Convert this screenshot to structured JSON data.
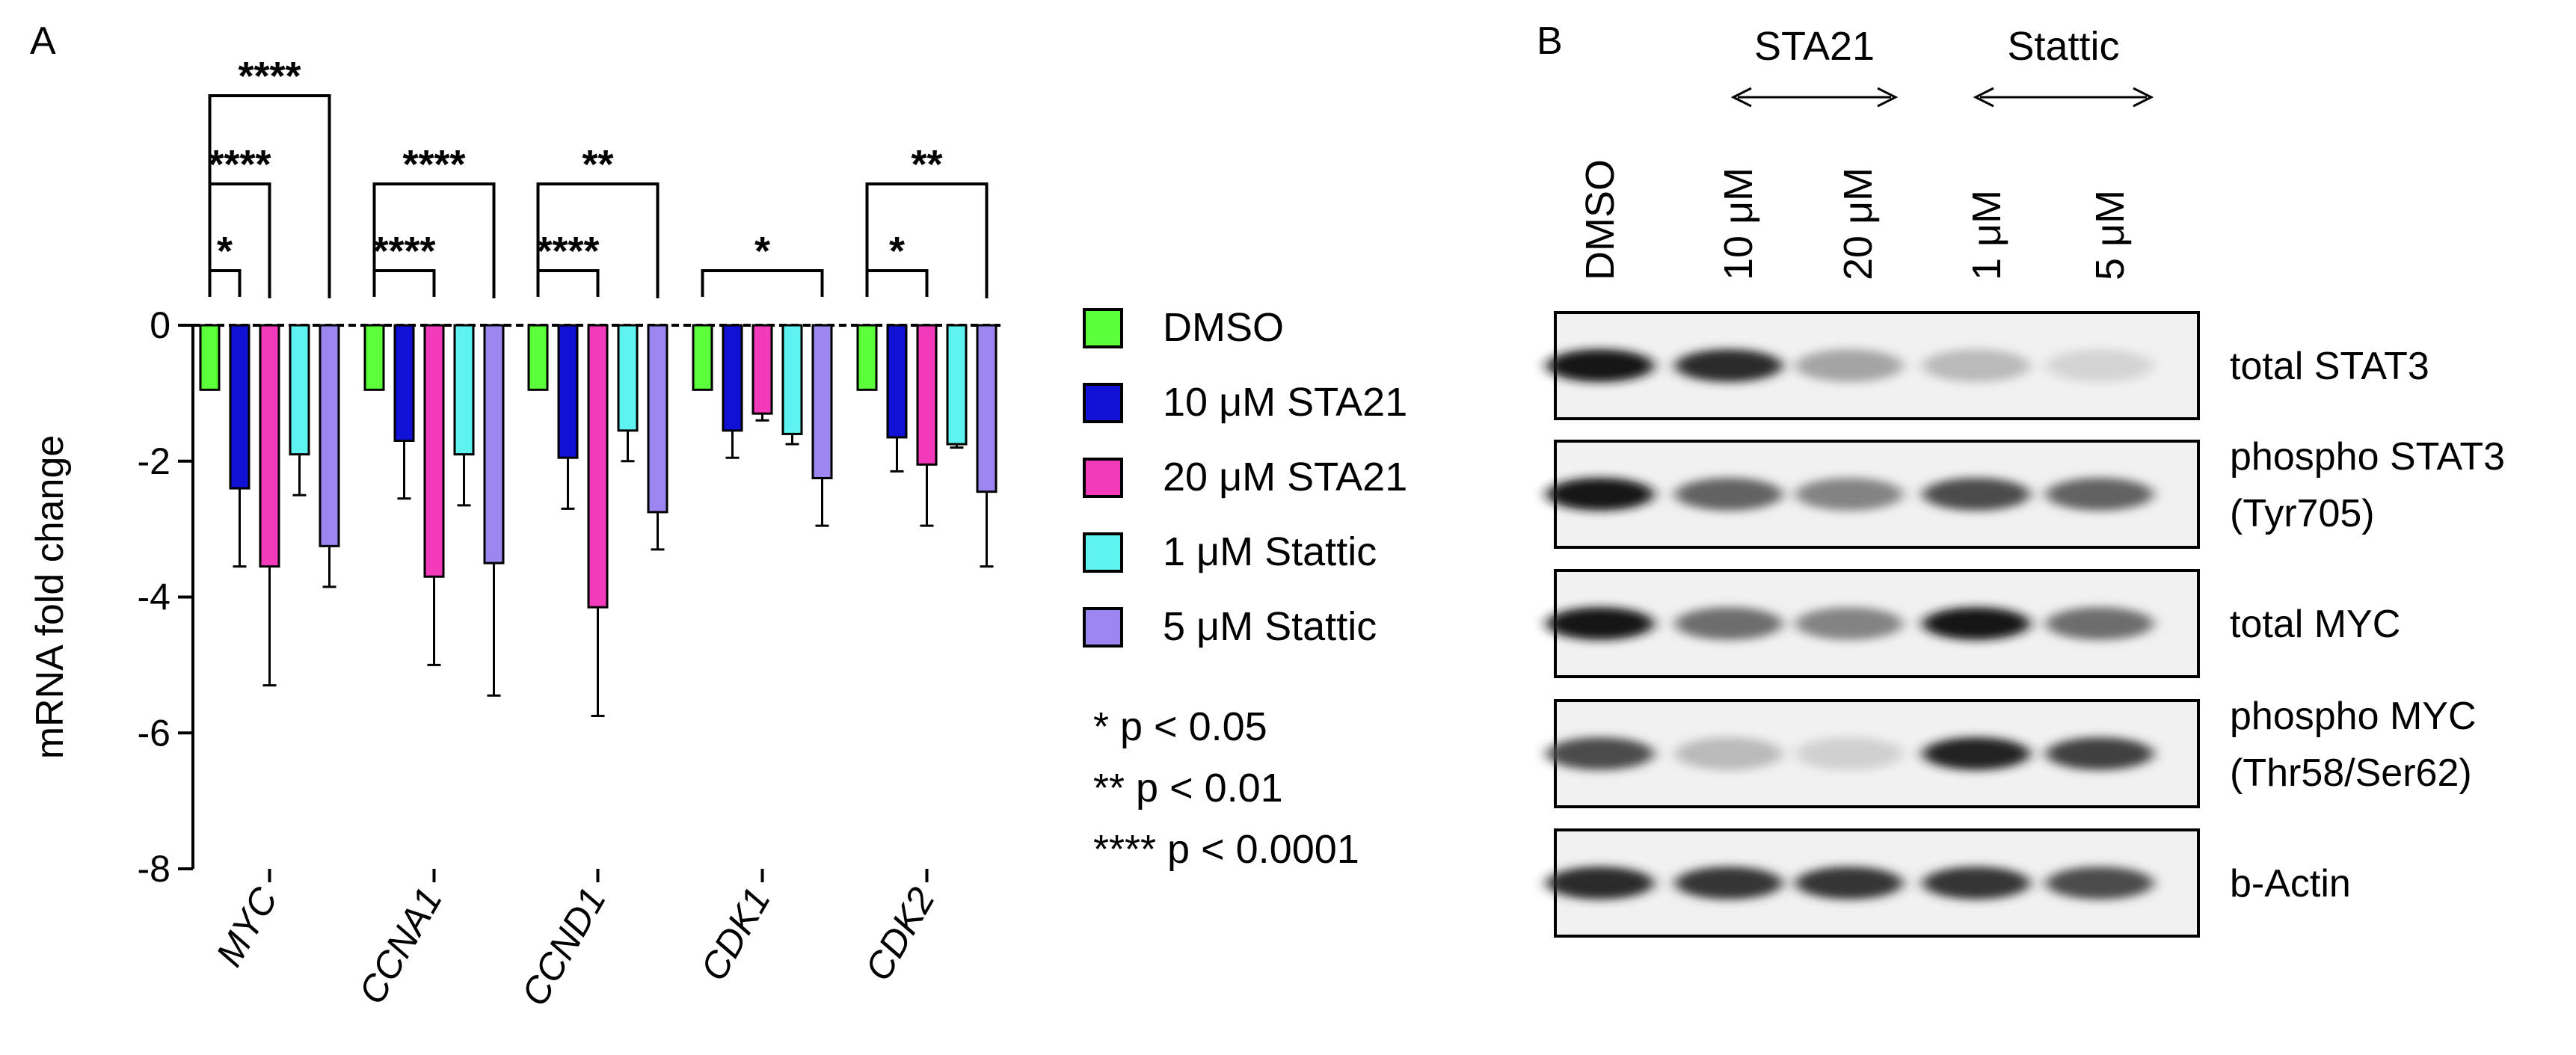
{
  "panel_a_label": "A",
  "panel_b_label": "B",
  "chart_data": {
    "type": "bar",
    "title": "",
    "xlabel": "",
    "ylabel": "mRNA fold change",
    "ylim": [
      -8,
      0
    ],
    "yticks": [
      "0",
      "-2",
      "-4",
      "-6",
      "-8"
    ],
    "categories": [
      "MYC",
      "CCNA1",
      "CCND1",
      "CDK1",
      "CDK2"
    ],
    "series": [
      {
        "name": "DMSO",
        "color": "#5bff3a",
        "values": [
          -0.95,
          -0.95,
          -0.95,
          -0.95,
          -0.95
        ],
        "errors": [
          0,
          0,
          0,
          0,
          0
        ]
      },
      {
        "name": "10 μM STA21",
        "color": "#1111d6",
        "values": [
          -2.4,
          -1.7,
          -1.95,
          -1.55,
          -1.65
        ],
        "errors": [
          1.15,
          0.85,
          0.75,
          0.4,
          0.5
        ]
      },
      {
        "name": "20 μM STA21",
        "color": "#f23aba",
        "values": [
          -3.55,
          -3.7,
          -4.15,
          -1.3,
          -2.05
        ],
        "errors": [
          1.75,
          1.3,
          1.6,
          0.1,
          0.9
        ]
      },
      {
        "name": "1 μM Stattic",
        "color": "#5ef3f0",
        "values": [
          -1.9,
          -1.9,
          -1.55,
          -1.6,
          -1.75
        ],
        "errors": [
          0.6,
          0.75,
          0.45,
          0.15,
          0.05
        ]
      },
      {
        "name": "5 μM Stattic",
        "color": "#9d86f0",
        "values": [
          -3.25,
          -3.5,
          -2.75,
          -2.25,
          -2.45
        ],
        "errors": [
          0.6,
          1.95,
          0.55,
          0.7,
          1.1
        ]
      }
    ],
    "significance": [
      {
        "category": "MYC",
        "from_series": 0,
        "to_series": 1,
        "label": "*",
        "level": 1
      },
      {
        "category": "MYC",
        "from_series": 0,
        "to_series": 2,
        "label": "****",
        "level": 2
      },
      {
        "category": "MYC",
        "from_series": 0,
        "to_series": 4,
        "label": "****",
        "level": 3
      },
      {
        "category": "CCNA1",
        "from_series": 0,
        "to_series": 2,
        "label": "****",
        "level": 1
      },
      {
        "category": "CCNA1",
        "from_series": 0,
        "to_series": 4,
        "label": "****",
        "level": 2
      },
      {
        "category": "CCND1",
        "from_series": 0,
        "to_series": 2,
        "label": "****",
        "level": 1
      },
      {
        "category": "CCND1",
        "from_series": 0,
        "to_series": 4,
        "label": "**",
        "level": 2
      },
      {
        "category": "CDK1",
        "from_series": 0,
        "to_series": 4,
        "label": "*",
        "level": 1
      },
      {
        "category": "CDK2",
        "from_series": 0,
        "to_series": 2,
        "label": "*",
        "level": 1
      },
      {
        "category": "CDK2",
        "from_series": 0,
        "to_series": 4,
        "label": "**",
        "level": 2
      }
    ],
    "legend_position": "right",
    "pvalue_notes": [
      "* p < 0.05",
      "** p < 0.01",
      "**** p < 0.0001"
    ]
  },
  "blot": {
    "group_labels": [
      "STA21",
      "Stattic"
    ],
    "lanes": [
      "DMSO",
      "10 μM",
      "20 μM",
      "1 μM",
      "5 μM"
    ],
    "rows": [
      {
        "label_lines": [
          "total STAT3"
        ],
        "intensities": [
          0.95,
          0.85,
          0.3,
          0.2,
          0.08
        ]
      },
      {
        "label_lines": [
          "phospho STAT3",
          "(Tyr705)"
        ],
        "intensities": [
          0.95,
          0.6,
          0.45,
          0.7,
          0.6
        ]
      },
      {
        "label_lines": [
          "total MYC"
        ],
        "intensities": [
          0.95,
          0.55,
          0.45,
          0.95,
          0.55
        ]
      },
      {
        "label_lines": [
          "phospho MYC",
          "(Thr58/Ser62)"
        ],
        "intensities": [
          0.7,
          0.2,
          0.1,
          0.9,
          0.75
        ]
      },
      {
        "label_lines": [
          "b-Actin"
        ],
        "intensities": [
          0.85,
          0.8,
          0.8,
          0.8,
          0.7
        ]
      }
    ]
  }
}
